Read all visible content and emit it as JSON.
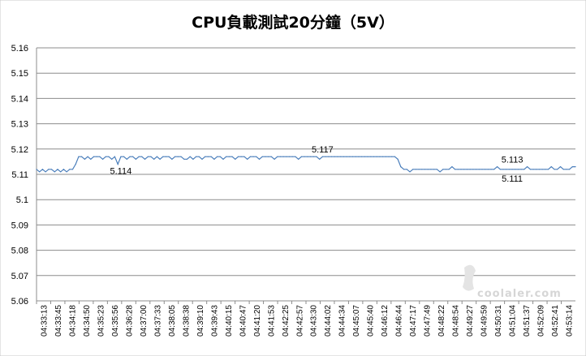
{
  "chart_data": {
    "type": "line",
    "title": "CPU負載測試20分鐘（5V）",
    "xlabel": "",
    "ylabel": "",
    "ylim": [
      5.06,
      5.16
    ],
    "y_ticks": [
      "5.06",
      "5.07",
      "5.08",
      "5.09",
      "5.1",
      "5.11",
      "5.12",
      "5.13",
      "5.14",
      "5.15",
      "5.16"
    ],
    "x_tick_labels": [
      "04:33:13",
      "04:33:45",
      "04:34:18",
      "04:34:50",
      "04:35:23",
      "04:35:56",
      "04:36:28",
      "04:37:00",
      "04:37:33",
      "04:38:05",
      "04:38:38",
      "04:39:10",
      "04:39:43",
      "04:40:15",
      "04:40:47",
      "04:41:20",
      "04:41:53",
      "04:42:25",
      "04:42:57",
      "04:43:30",
      "04:44:02",
      "04:44:34",
      "04:45:07",
      "04:45:40",
      "04:46:12",
      "04:46:44",
      "04:47:17",
      "04:47:49",
      "04:48:22",
      "04:48:54",
      "04:49:27",
      "04:49:59",
      "04:50:31",
      "04:51:04",
      "04:51:37",
      "04:52:09",
      "04:52:41",
      "04:53:14"
    ],
    "grid": "horizontal",
    "legend": "none",
    "series": [
      {
        "color": "#4a7ebb",
        "points": [
          [
            0,
            5.112
          ],
          [
            1,
            5.111
          ],
          [
            2,
            5.112
          ],
          [
            3,
            5.111
          ],
          [
            4,
            5.112
          ],
          [
            5,
            5.112
          ],
          [
            6,
            5.111
          ],
          [
            7,
            5.112
          ],
          [
            8,
            5.111
          ],
          [
            9,
            5.112
          ],
          [
            10,
            5.111
          ],
          [
            11,
            5.112
          ],
          [
            12,
            5.112
          ],
          [
            13,
            5.114
          ],
          [
            14,
            5.117
          ],
          [
            15,
            5.117
          ],
          [
            16,
            5.116
          ],
          [
            17,
            5.117
          ],
          [
            18,
            5.116
          ],
          [
            19,
            5.117
          ],
          [
            20,
            5.117
          ],
          [
            21,
            5.117
          ],
          [
            22,
            5.116
          ],
          [
            23,
            5.117
          ],
          [
            24,
            5.117
          ],
          [
            25,
            5.116
          ],
          [
            26,
            5.117
          ],
          [
            27,
            5.114
          ],
          [
            28,
            5.117
          ],
          [
            29,
            5.117
          ],
          [
            30,
            5.116
          ],
          [
            31,
            5.117
          ],
          [
            32,
            5.117
          ],
          [
            33,
            5.116
          ],
          [
            34,
            5.117
          ],
          [
            35,
            5.117
          ],
          [
            36,
            5.116
          ],
          [
            37,
            5.117
          ],
          [
            38,
            5.117
          ],
          [
            39,
            5.116
          ],
          [
            40,
            5.117
          ],
          [
            41,
            5.116
          ],
          [
            42,
            5.117
          ],
          [
            43,
            5.117
          ],
          [
            44,
            5.117
          ],
          [
            45,
            5.116
          ],
          [
            46,
            5.117
          ],
          [
            47,
            5.117
          ],
          [
            48,
            5.117
          ],
          [
            49,
            5.116
          ],
          [
            50,
            5.116
          ],
          [
            51,
            5.117
          ],
          [
            52,
            5.116
          ],
          [
            53,
            5.117
          ],
          [
            54,
            5.117
          ],
          [
            55,
            5.116
          ],
          [
            56,
            5.117
          ],
          [
            57,
            5.117
          ],
          [
            58,
            5.117
          ],
          [
            59,
            5.116
          ],
          [
            60,
            5.117
          ],
          [
            61,
            5.117
          ],
          [
            62,
            5.116
          ],
          [
            63,
            5.117
          ],
          [
            64,
            5.117
          ],
          [
            65,
            5.117
          ],
          [
            66,
            5.116
          ],
          [
            67,
            5.117
          ],
          [
            68,
            5.117
          ],
          [
            69,
            5.117
          ],
          [
            70,
            5.116
          ],
          [
            71,
            5.117
          ],
          [
            72,
            5.117
          ],
          [
            73,
            5.117
          ],
          [
            74,
            5.116
          ],
          [
            75,
            5.117
          ],
          [
            76,
            5.117
          ],
          [
            77,
            5.117
          ],
          [
            78,
            5.117
          ],
          [
            79,
            5.116
          ],
          [
            80,
            5.117
          ],
          [
            81,
            5.117
          ],
          [
            82,
            5.117
          ],
          [
            83,
            5.117
          ],
          [
            84,
            5.117
          ],
          [
            85,
            5.117
          ],
          [
            86,
            5.117
          ],
          [
            87,
            5.116
          ],
          [
            88,
            5.117
          ],
          [
            89,
            5.117
          ],
          [
            90,
            5.117
          ],
          [
            91,
            5.117
          ],
          [
            92,
            5.117
          ],
          [
            93,
            5.117
          ],
          [
            94,
            5.116
          ],
          [
            95,
            5.117
          ],
          [
            96,
            5.117
          ],
          [
            97,
            5.117
          ],
          [
            98,
            5.117
          ],
          [
            99,
            5.117
          ],
          [
            100,
            5.117
          ],
          [
            101,
            5.117
          ],
          [
            102,
            5.117
          ],
          [
            103,
            5.117
          ],
          [
            104,
            5.117
          ],
          [
            105,
            5.117
          ],
          [
            106,
            5.117
          ],
          [
            107,
            5.117
          ],
          [
            108,
            5.117
          ],
          [
            109,
            5.117
          ],
          [
            110,
            5.117
          ],
          [
            111,
            5.117
          ],
          [
            112,
            5.117
          ],
          [
            113,
            5.117
          ],
          [
            114,
            5.117
          ],
          [
            115,
            5.117
          ],
          [
            116,
            5.117
          ],
          [
            117,
            5.117
          ],
          [
            118,
            5.117
          ],
          [
            119,
            5.117
          ],
          [
            120,
            5.116
          ],
          [
            121,
            5.113
          ],
          [
            122,
            5.112
          ],
          [
            123,
            5.112
          ],
          [
            124,
            5.111
          ],
          [
            125,
            5.112
          ],
          [
            126,
            5.112
          ],
          [
            127,
            5.112
          ],
          [
            128,
            5.112
          ],
          [
            129,
            5.112
          ],
          [
            130,
            5.112
          ],
          [
            131,
            5.112
          ],
          [
            132,
            5.112
          ],
          [
            133,
            5.112
          ],
          [
            134,
            5.111
          ],
          [
            135,
            5.112
          ],
          [
            136,
            5.112
          ],
          [
            137,
            5.112
          ],
          [
            138,
            5.113
          ],
          [
            139,
            5.112
          ],
          [
            140,
            5.112
          ],
          [
            141,
            5.112
          ],
          [
            142,
            5.112
          ],
          [
            143,
            5.112
          ],
          [
            144,
            5.112
          ],
          [
            145,
            5.112
          ],
          [
            146,
            5.112
          ],
          [
            147,
            5.112
          ],
          [
            148,
            5.112
          ],
          [
            149,
            5.112
          ],
          [
            150,
            5.112
          ],
          [
            151,
            5.112
          ],
          [
            152,
            5.112
          ],
          [
            153,
            5.113
          ],
          [
            154,
            5.112
          ],
          [
            155,
            5.112
          ],
          [
            156,
            5.112
          ],
          [
            157,
            5.112
          ],
          [
            158,
            5.112
          ],
          [
            159,
            5.112
          ],
          [
            160,
            5.112
          ],
          [
            161,
            5.112
          ],
          [
            162,
            5.112
          ],
          [
            163,
            5.113
          ],
          [
            164,
            5.112
          ],
          [
            165,
            5.112
          ],
          [
            166,
            5.112
          ],
          [
            167,
            5.112
          ],
          [
            168,
            5.112
          ],
          [
            169,
            5.112
          ],
          [
            170,
            5.112
          ],
          [
            171,
            5.113
          ],
          [
            172,
            5.112
          ],
          [
            173,
            5.112
          ],
          [
            174,
            5.113
          ],
          [
            175,
            5.112
          ],
          [
            176,
            5.112
          ],
          [
            177,
            5.112
          ],
          [
            178,
            5.113
          ],
          [
            179,
            5.113
          ]
        ]
      }
    ],
    "annotations": [
      {
        "text": "5.114",
        "x": 28,
        "y": 5.114
      },
      {
        "text": "5.117",
        "x": 95,
        "y": 5.117
      },
      {
        "text": "5.113",
        "x": 158,
        "y": 5.113
      },
      {
        "text": "5.111",
        "x": 158,
        "y": 5.111
      }
    ],
    "watermark": "coolaler.com"
  }
}
